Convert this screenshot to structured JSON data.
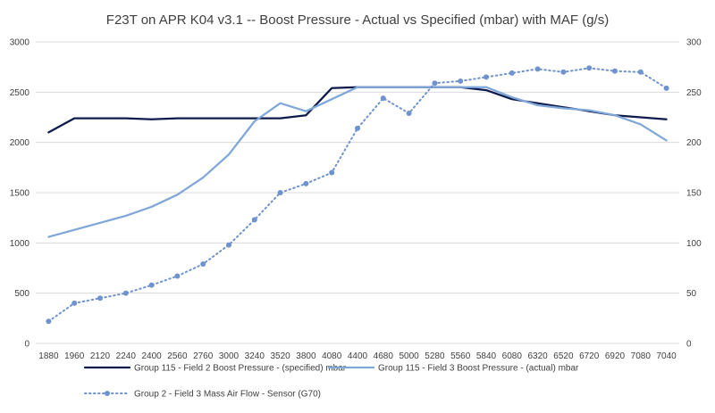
{
  "chart_data": {
    "type": "line",
    "title": "F23T on APR K04 v3.1 -- Boost Pressure - Actual vs Specified (mbar) with MAF (g/s)",
    "categories": [
      "1880",
      "1960",
      "2120",
      "2240",
      "2400",
      "2560",
      "2760",
      "3000",
      "3240",
      "3520",
      "3800",
      "4080",
      "4400",
      "4680",
      "5000",
      "5280",
      "5560",
      "5840",
      "6080",
      "6320",
      "6520",
      "6720",
      "6920",
      "7080",
      "7040"
    ],
    "y_left": {
      "min": 0,
      "max": 3000,
      "ticks": [
        "0",
        "500",
        "1000",
        "1500",
        "2000",
        "2500",
        "3000"
      ]
    },
    "y_right": {
      "min": 0,
      "max": 300,
      "ticks": [
        "0",
        "50",
        "100",
        "150",
        "200",
        "250",
        "300"
      ]
    },
    "grid": "horizontal",
    "legend_position": "bottom",
    "series": [
      {
        "name": "Group 115 - Field 2 Boost Pressure - (specified)  mbar",
        "axis": "left",
        "color": "#0d1b4c",
        "style": "solid",
        "values": [
          2100,
          2240,
          2240,
          2240,
          2230,
          2240,
          2240,
          2240,
          2240,
          2240,
          2270,
          2540,
          2550,
          2550,
          2550,
          2550,
          2550,
          2520,
          2430,
          2390,
          2350,
          2310,
          2270,
          2250,
          2230
        ]
      },
      {
        "name": "Group 115 - Field 3 Boost Pressure - (actual)  mbar",
        "axis": "left",
        "color": "#7fa7d9",
        "style": "solid",
        "values": [
          1060,
          1130,
          1200,
          1270,
          1360,
          1480,
          1650,
          1880,
          2210,
          2390,
          2310,
          2430,
          2550,
          2550,
          2550,
          2550,
          2550,
          2550,
          2450,
          2370,
          2340,
          2320,
          2270,
          2180,
          2020
        ]
      },
      {
        "name": "Group 2 - Field 3 Mass Air Flow - Sensor (G70)",
        "axis": "right",
        "color": "#6f93cf",
        "style": "dotted-markers",
        "values": [
          22,
          40,
          45,
          50,
          58,
          67,
          79,
          98,
          123,
          150,
          159,
          170,
          214,
          244,
          229,
          259,
          261,
          265,
          269,
          273,
          270,
          274,
          271,
          270,
          254
        ]
      }
    ]
  }
}
